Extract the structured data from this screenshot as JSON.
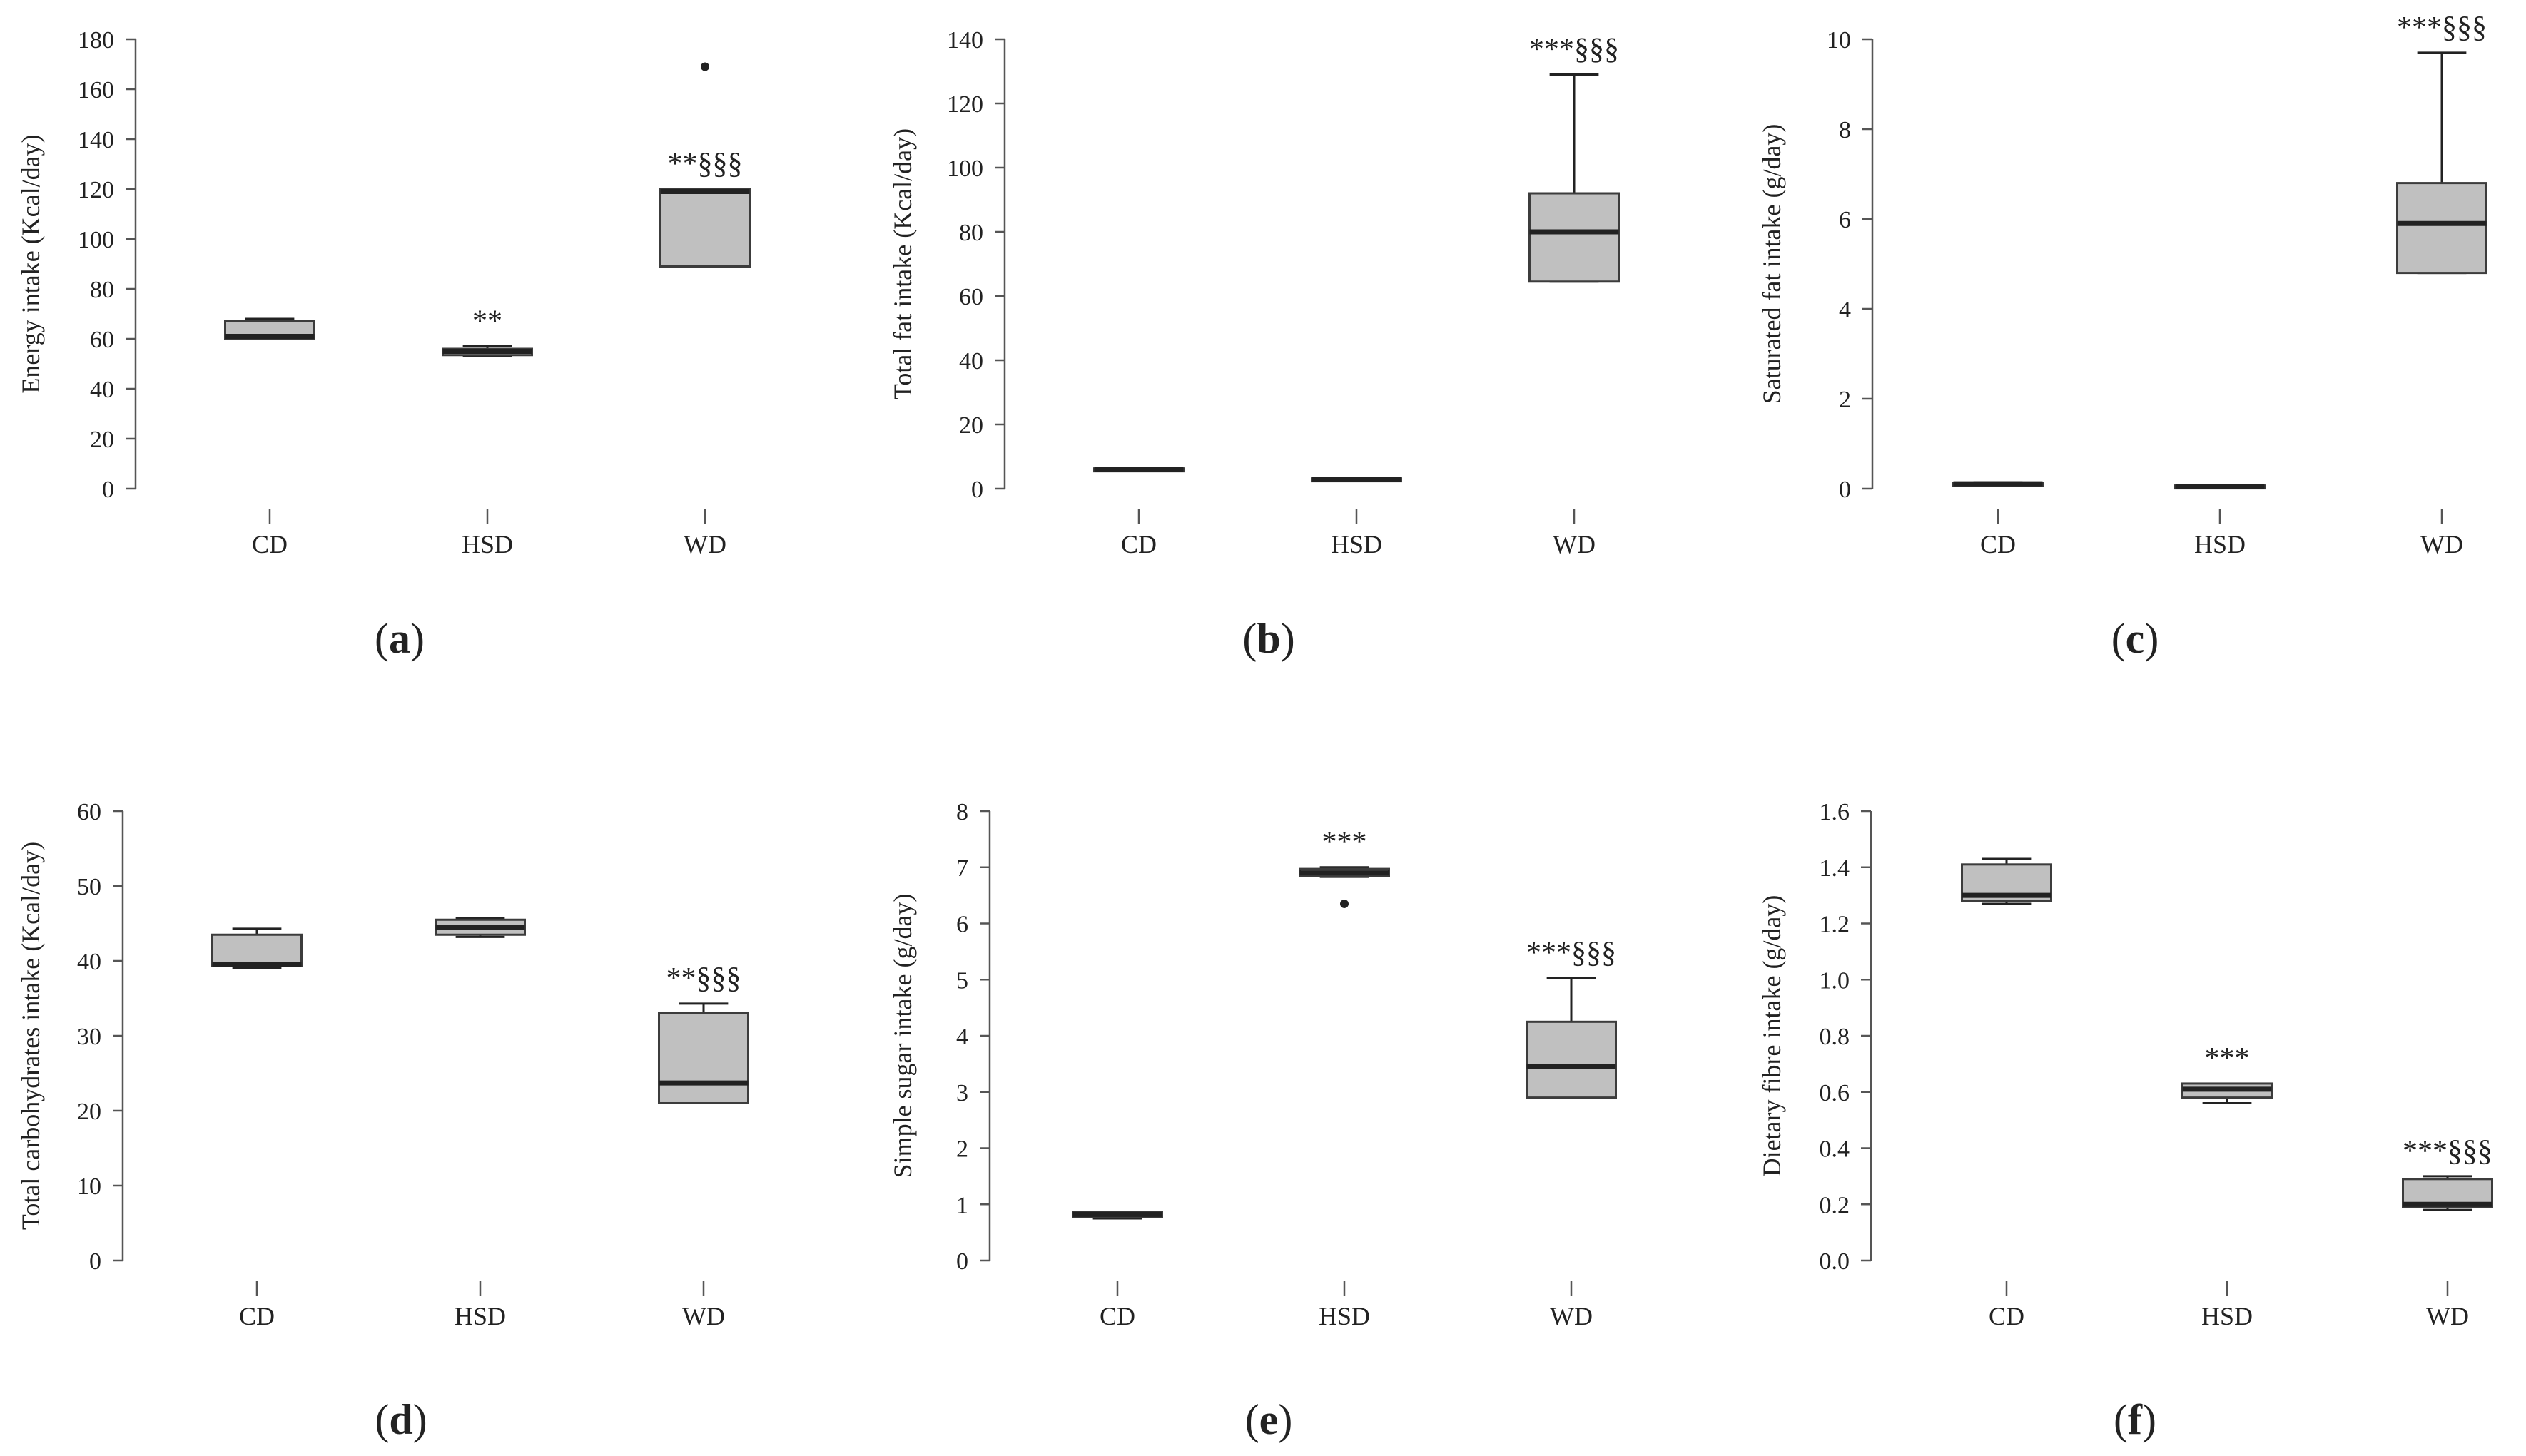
{
  "chart_data": [
    {
      "type": "box",
      "panel": "(a)",
      "ylabel": "Energy intake (Kcal/day)",
      "ylim": [
        0,
        180
      ],
      "yticks": [
        0,
        20,
        40,
        60,
        80,
        100,
        120,
        140,
        160,
        180
      ],
      "categories": [
        "CD",
        "HSD",
        "WD"
      ],
      "boxes": [
        {
          "category": "CD",
          "min": 60,
          "q1": 60,
          "median": 61,
          "q3": 67,
          "max": 68,
          "outliers": [],
          "sig": ""
        },
        {
          "category": "HSD",
          "min": 53,
          "q1": 53.5,
          "median": 55,
          "q3": 56,
          "max": 57,
          "outliers": [],
          "sig": "**"
        },
        {
          "category": "WD",
          "min": 89,
          "q1": 89,
          "median": 119,
          "q3": 120,
          "max": 120,
          "outliers": [
            169
          ],
          "sig": "**§§§"
        }
      ]
    },
    {
      "type": "box",
      "panel": "(b)",
      "ylabel": "Total fat intake (Kcal/day)",
      "ylim": [
        0,
        140
      ],
      "yticks": [
        0,
        20,
        40,
        60,
        80,
        100,
        120,
        140
      ],
      "categories": [
        "CD",
        "HSD",
        "WD"
      ],
      "boxes": [
        {
          "category": "CD",
          "min": 5.5,
          "q1": 5.6,
          "median": 6,
          "q3": 6.3,
          "max": 6.5,
          "outliers": [],
          "sig": ""
        },
        {
          "category": "HSD",
          "min": 2.6,
          "q1": 2.7,
          "median": 3,
          "q3": 3.2,
          "max": 3.3,
          "outliers": [],
          "sig": ""
        },
        {
          "category": "WD",
          "min": 64.5,
          "q1": 64.5,
          "median": 80,
          "q3": 92,
          "max": 129,
          "outliers": [],
          "sig": "***§§§"
        }
      ]
    },
    {
      "type": "box",
      "panel": "(c)",
      "ylabel": "Saturated fat intake (g/day)",
      "ylim": [
        0,
        10
      ],
      "yticks": [
        0,
        2,
        4,
        6,
        8,
        10
      ],
      "categories": [
        "CD",
        "HSD",
        "WD"
      ],
      "boxes": [
        {
          "category": "CD",
          "min": 0.08,
          "q1": 0.09,
          "median": 0.11,
          "q3": 0.13,
          "max": 0.14,
          "outliers": [],
          "sig": ""
        },
        {
          "category": "HSD",
          "min": 0.03,
          "q1": 0.04,
          "median": 0.05,
          "q3": 0.07,
          "max": 0.08,
          "outliers": [],
          "sig": ""
        },
        {
          "category": "WD",
          "min": 4.8,
          "q1": 4.8,
          "median": 5.9,
          "q3": 6.8,
          "max": 9.7,
          "outliers": [],
          "sig": "***§§§"
        }
      ]
    },
    {
      "type": "box",
      "panel": "(d)",
      "ylabel": "Total carbohydrates intake (Kcal/day)",
      "ylim": [
        0,
        60
      ],
      "yticks": [
        0,
        10,
        20,
        30,
        40,
        50,
        60
      ],
      "categories": [
        "CD",
        "HSD",
        "WD"
      ],
      "boxes": [
        {
          "category": "CD",
          "min": 39,
          "q1": 39.3,
          "median": 39.5,
          "q3": 43.5,
          "max": 44.3,
          "outliers": [],
          "sig": ""
        },
        {
          "category": "HSD",
          "min": 43.2,
          "q1": 43.5,
          "median": 44.5,
          "q3": 45.5,
          "max": 45.7,
          "outliers": [],
          "sig": ""
        },
        {
          "category": "WD",
          "min": 21,
          "q1": 21,
          "median": 23.7,
          "q3": 33,
          "max": 34.3,
          "outliers": [],
          "sig": "**§§§"
        }
      ]
    },
    {
      "type": "box",
      "panel": "(e)",
      "ylabel": "Simple sugar intake (g/day)",
      "ylim": [
        0,
        8
      ],
      "yticks": [
        0,
        1,
        2,
        3,
        4,
        5,
        6,
        7,
        8
      ],
      "categories": [
        "CD",
        "HSD",
        "WD"
      ],
      "boxes": [
        {
          "category": "CD",
          "min": 0.75,
          "q1": 0.78,
          "median": 0.82,
          "q3": 0.86,
          "max": 0.87,
          "outliers": [],
          "sig": ""
        },
        {
          "category": "HSD",
          "min": 6.83,
          "q1": 6.85,
          "median": 6.9,
          "q3": 6.97,
          "max": 7.0,
          "outliers": [
            6.35
          ],
          "sig": "***"
        },
        {
          "category": "WD",
          "min": 2.9,
          "q1": 2.9,
          "median": 3.45,
          "q3": 4.25,
          "max": 5.03,
          "outliers": [],
          "sig": "***§§§"
        }
      ]
    },
    {
      "type": "box",
      "panel": "(f)",
      "ylabel": "Dietary fibre intake (g/day)",
      "ylim": [
        0,
        1.6
      ],
      "yticks": [
        "0.0",
        "0.2",
        "0.4",
        "0.6",
        "0.8",
        "1.0",
        "1.2",
        "1.4",
        "1.6"
      ],
      "categories": [
        "CD",
        "HSD",
        "WD"
      ],
      "boxes": [
        {
          "category": "CD",
          "min": 1.27,
          "q1": 1.28,
          "median": 1.3,
          "q3": 1.41,
          "max": 1.43,
          "outliers": [],
          "sig": ""
        },
        {
          "category": "HSD",
          "min": 0.56,
          "q1": 0.58,
          "median": 0.61,
          "q3": 0.63,
          "max": 0.63,
          "outliers": [],
          "sig": "***"
        },
        {
          "category": "WD",
          "min": 0.18,
          "q1": 0.19,
          "median": 0.2,
          "q3": 0.29,
          "max": 0.3,
          "outliers": [],
          "sig": "***§§§"
        }
      ]
    }
  ]
}
